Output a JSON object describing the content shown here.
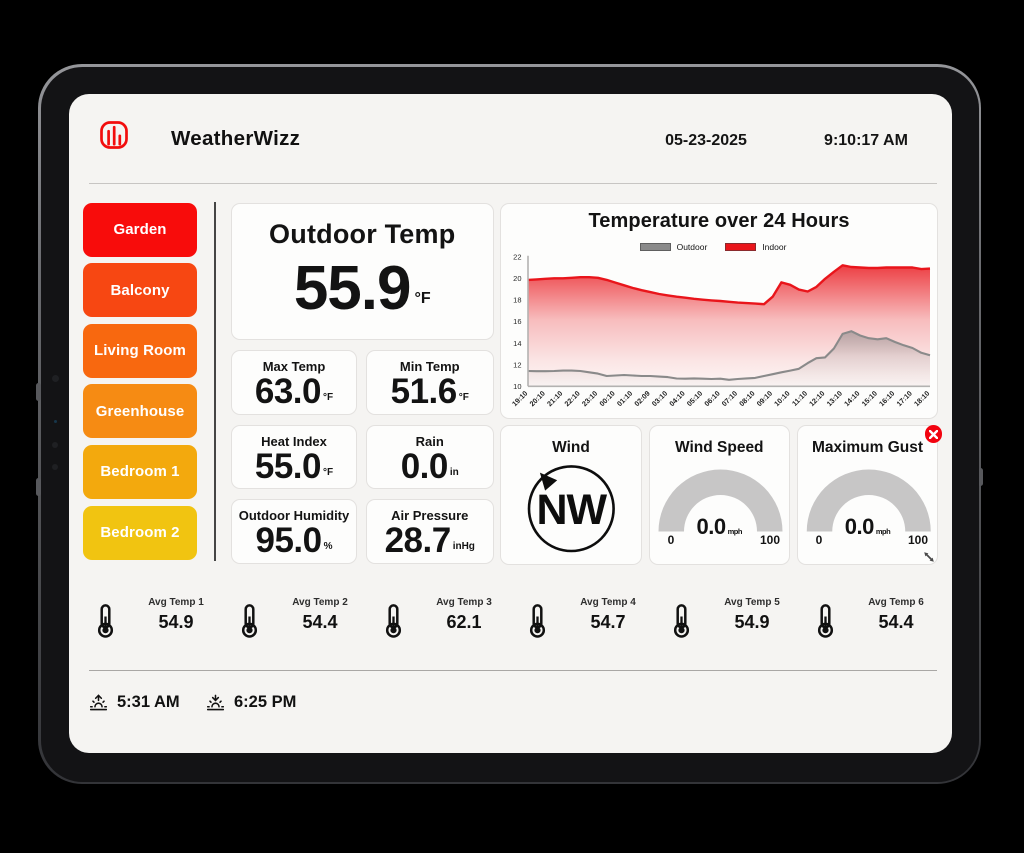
{
  "app": {
    "title": "WeatherWizz",
    "date": "05-23-2025",
    "time": "9:10:17 AM"
  },
  "sidebar": {
    "rooms": [
      {
        "label": "Garden",
        "color": "#f80c0b"
      },
      {
        "label": "Balcony",
        "color": "#f74712"
      },
      {
        "label": "Living Room",
        "color": "#f8680f"
      },
      {
        "label": "Greenhouse",
        "color": "#f68b13"
      },
      {
        "label": "Bedroom 1",
        "color": "#f3a90d"
      },
      {
        "label": "Bedroom 2",
        "color": "#f1c411"
      }
    ]
  },
  "metrics": {
    "main": {
      "label": "Outdoor Temp",
      "value": "55.9",
      "unit": "°F"
    },
    "cards": [
      {
        "label": "Max Temp",
        "value": "63.0",
        "unit": "°F"
      },
      {
        "label": "Min Temp",
        "value": "51.6",
        "unit": "°F"
      },
      {
        "label": "Heat Index",
        "value": "55.0",
        "unit": "°F"
      },
      {
        "label": "Rain",
        "value": "0.0",
        "unit": "in"
      },
      {
        "label": "Outdoor Humidity",
        "value": "95.0",
        "unit": "%"
      },
      {
        "label": "Air Pressure",
        "value": "28.7",
        "unit": "inHg"
      }
    ]
  },
  "wind": {
    "title": "Wind",
    "direction": "NW"
  },
  "gauges": [
    {
      "title": "Wind Speed",
      "value": "0.0",
      "unit": "mph",
      "min": "0",
      "max": "100"
    },
    {
      "title": "Maximum Gust",
      "value": "0.0",
      "unit": "mph",
      "min": "0",
      "max": "100"
    }
  ],
  "sensors": [
    {
      "label": "Avg Temp 1",
      "value": "54.9"
    },
    {
      "label": "Avg Temp 2",
      "value": "54.4"
    },
    {
      "label": "Avg Temp 3",
      "value": "62.1"
    },
    {
      "label": "Avg Temp 4",
      "value": "54.7"
    },
    {
      "label": "Avg Temp 5",
      "value": "54.9"
    },
    {
      "label": "Avg Temp 6",
      "value": "54.4"
    }
  ],
  "sun": {
    "sunrise": "5:31 AM",
    "sunset": "6:25 PM"
  },
  "chart_data": {
    "type": "area",
    "title": "Temperature over 24 Hours",
    "categories": [
      "19:10",
      "20:10",
      "21:10",
      "22:10",
      "23:10",
      "00:10",
      "01:10",
      "02:09",
      "03:10",
      "04:10",
      "05:10",
      "06:10",
      "07:10",
      "08:10",
      "09:10",
      "10:10",
      "11:10",
      "12:10",
      "13:10",
      "14:10",
      "15:10",
      "16:10",
      "17:10",
      "18:10"
    ],
    "series": [
      {
        "name": "Indoor",
        "color": "#e9151b",
        "values": [
          19.85,
          19.95,
          20.0,
          20.1,
          20.05,
          19.6,
          19.1,
          18.72,
          18.42,
          18.2,
          18.02,
          17.9,
          17.75,
          17.66,
          18.3,
          19.4,
          18.78,
          19.95,
          21.2,
          21.0,
          20.95,
          21.0,
          21.0,
          20.9
        ],
        "values_30min": [
          19.85,
          19.9,
          19.95,
          20.0,
          20.0,
          20.05,
          20.1,
          20.1,
          20.05,
          19.85,
          19.6,
          19.35,
          19.1,
          18.9,
          18.72,
          18.55,
          18.42,
          18.3,
          18.2,
          18.1,
          18.02,
          17.95,
          17.9,
          17.82,
          17.75,
          17.7,
          17.66,
          17.6,
          18.3,
          19.62,
          19.4,
          18.95,
          18.78,
          19.2,
          19.95,
          20.6,
          21.2,
          21.05,
          21.0,
          20.95,
          20.95,
          21.0,
          21.0,
          21.0,
          21.0,
          20.85,
          20.9
        ]
      },
      {
        "name": "Outdoor",
        "color": "#8a8a8a",
        "values": [
          11.42,
          11.4,
          11.45,
          11.42,
          11.18,
          11.0,
          11.0,
          10.95,
          10.85,
          10.7,
          10.7,
          10.7,
          10.68,
          10.78,
          11.12,
          11.45,
          12.15,
          12.68,
          14.85,
          14.7,
          14.35,
          14.1,
          13.55,
          12.88
        ],
        "values_30min": [
          11.42,
          11.4,
          11.4,
          11.42,
          11.45,
          11.45,
          11.42,
          11.3,
          11.18,
          10.95,
          11.0,
          11.05,
          11.0,
          10.95,
          10.95,
          10.9,
          10.85,
          10.72,
          10.7,
          10.73,
          10.7,
          10.68,
          10.7,
          10.6,
          10.68,
          10.73,
          10.78,
          10.95,
          11.12,
          11.3,
          11.45,
          11.62,
          12.15,
          12.6,
          12.68,
          13.5,
          14.85,
          15.1,
          14.7,
          14.45,
          14.35,
          14.45,
          14.1,
          13.8,
          13.55,
          13.1,
          12.88
        ]
      }
    ],
    "legend": [
      "Outdoor",
      "Indoor"
    ],
    "legend_position": "top",
    "grid": false,
    "ylim": [
      10,
      22
    ],
    "yticks": [
      10,
      12,
      14,
      16,
      18,
      20,
      22
    ]
  }
}
